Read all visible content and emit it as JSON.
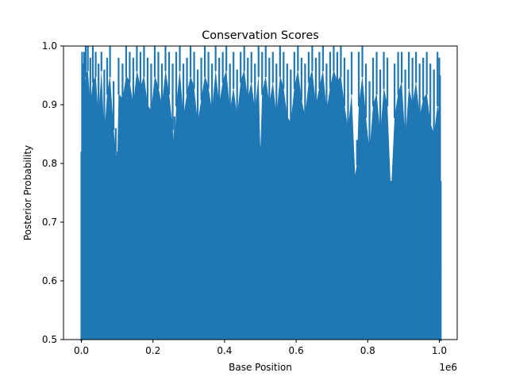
{
  "chart_data": {
    "type": "area",
    "title": "Conservation Scores",
    "xlabel": "Base Position",
    "ylabel": "Posterior Probability",
    "xlim": [
      -50000,
      1050000
    ],
    "ylim": [
      0.5,
      1.0
    ],
    "x_offset_label": "1e6",
    "x_ticks": [
      0,
      200000,
      400000,
      600000,
      800000,
      1000000
    ],
    "x_tick_labels": [
      "0.0",
      "0.2",
      "0.4",
      "0.6",
      "0.8",
      "1.0"
    ],
    "y_ticks": [
      0.5,
      0.6,
      0.7,
      0.8,
      0.9,
      1.0
    ],
    "y_tick_labels": [
      "0.5",
      "0.6",
      "0.7",
      "0.8",
      "0.9",
      "1.0"
    ],
    "grid": false,
    "legend": "none",
    "series_color": "#1f77b4",
    "baseline": 0.5,
    "series": [
      {
        "x": [
          0,
          2000,
          4000,
          6000,
          8000,
          12000,
          18000,
          25000,
          32000,
          40000,
          48000,
          56000,
          64000,
          72000,
          80000,
          90000,
          96000,
          100000,
          104000,
          115000,
          125000,
          135000,
          145000,
          155000,
          165000,
          175000,
          185000,
          195000,
          205000,
          215000,
          225000,
          235000,
          245000,
          255000,
          260000,
          265000,
          275000,
          285000,
          295000,
          305000,
          315000,
          325000,
          335000,
          345000,
          355000,
          365000,
          375000,
          385000,
          395000,
          405000,
          415000,
          425000,
          435000,
          445000,
          455000,
          465000,
          475000,
          485000,
          495000,
          500000,
          505000,
          515000,
          525000,
          535000,
          545000,
          555000,
          565000,
          575000,
          585000,
          595000,
          605000,
          615000,
          625000,
          635000,
          645000,
          655000,
          665000,
          675000,
          685000,
          695000,
          705000,
          715000,
          725000,
          735000,
          745000,
          755000,
          765000,
          770000,
          775000,
          785000,
          795000,
          805000,
          815000,
          825000,
          835000,
          845000,
          855000,
          865000,
          875000,
          885000,
          895000,
          905000,
          915000,
          925000,
          935000,
          945000,
          955000,
          965000,
          975000,
          985000,
          995000,
          1000000,
          1002000,
          1004000
        ],
        "y_high": [
          0.82,
          0.99,
          0.95,
          0.97,
          0.99,
          1.0,
          1.0,
          0.98,
          1.0,
          0.99,
          0.97,
          0.99,
          0.96,
          0.98,
          1.0,
          0.94,
          0.86,
          0.82,
          0.98,
          0.97,
          1.0,
          0.99,
          0.98,
          1.0,
          0.99,
          1.0,
          0.98,
          0.97,
          1.0,
          0.99,
          0.97,
          1.0,
          0.99,
          0.97,
          0.88,
          0.99,
          1.0,
          0.97,
          0.98,
          1.0,
          0.99,
          0.96,
          0.98,
          1.0,
          0.99,
          0.97,
          1.0,
          0.98,
          0.99,
          1.0,
          0.97,
          0.99,
          0.96,
          0.99,
          1.0,
          0.98,
          0.99,
          0.97,
          1.0,
          0.83,
          0.99,
          1.0,
          0.98,
          0.99,
          0.97,
          1.0,
          0.99,
          0.97,
          0.96,
          0.99,
          1.0,
          0.98,
          0.97,
          0.99,
          1.0,
          0.98,
          0.99,
          1.0,
          0.97,
          0.99,
          1.0,
          0.99,
          1.0,
          0.98,
          0.96,
          0.99,
          0.78,
          0.84,
          0.99,
          1.0,
          0.97,
          0.94,
          0.98,
          0.99,
          0.96,
          0.99,
          0.98,
          0.77,
          0.97,
          0.99,
          0.99,
          0.96,
          0.99,
          0.98,
          0.99,
          0.97,
          0.98,
          0.99,
          0.97,
          0.96,
          0.99,
          0.98,
          0.95,
          0.77
        ],
        "y_low": [
          0.5,
          0.82,
          0.9,
          0.86,
          0.93,
          0.95,
          0.96,
          0.9,
          0.94,
          0.95,
          0.88,
          0.96,
          0.85,
          0.92,
          0.95,
          0.86,
          0.82,
          0.8,
          0.92,
          0.91,
          0.95,
          0.94,
          0.9,
          0.96,
          0.93,
          0.95,
          0.9,
          0.89,
          0.95,
          0.93,
          0.9,
          0.96,
          0.92,
          0.86,
          0.82,
          0.9,
          0.96,
          0.88,
          0.92,
          0.95,
          0.93,
          0.87,
          0.91,
          0.95,
          0.93,
          0.89,
          0.96,
          0.9,
          0.94,
          0.96,
          0.89,
          0.93,
          0.88,
          0.94,
          0.96,
          0.91,
          0.94,
          0.89,
          0.95,
          0.82,
          0.92,
          0.95,
          0.9,
          0.94,
          0.88,
          0.95,
          0.93,
          0.88,
          0.87,
          0.93,
          0.96,
          0.91,
          0.88,
          0.94,
          0.96,
          0.9,
          0.93,
          0.96,
          0.89,
          0.93,
          0.96,
          0.94,
          0.95,
          0.9,
          0.86,
          0.92,
          0.78,
          0.8,
          0.9,
          0.95,
          0.88,
          0.82,
          0.9,
          0.92,
          0.85,
          0.93,
          0.9,
          0.75,
          0.88,
          0.92,
          0.94,
          0.84,
          0.93,
          0.9,
          0.94,
          0.88,
          0.91,
          0.92,
          0.87,
          0.85,
          0.9,
          0.88,
          0.62,
          0.5
        ]
      }
    ]
  }
}
